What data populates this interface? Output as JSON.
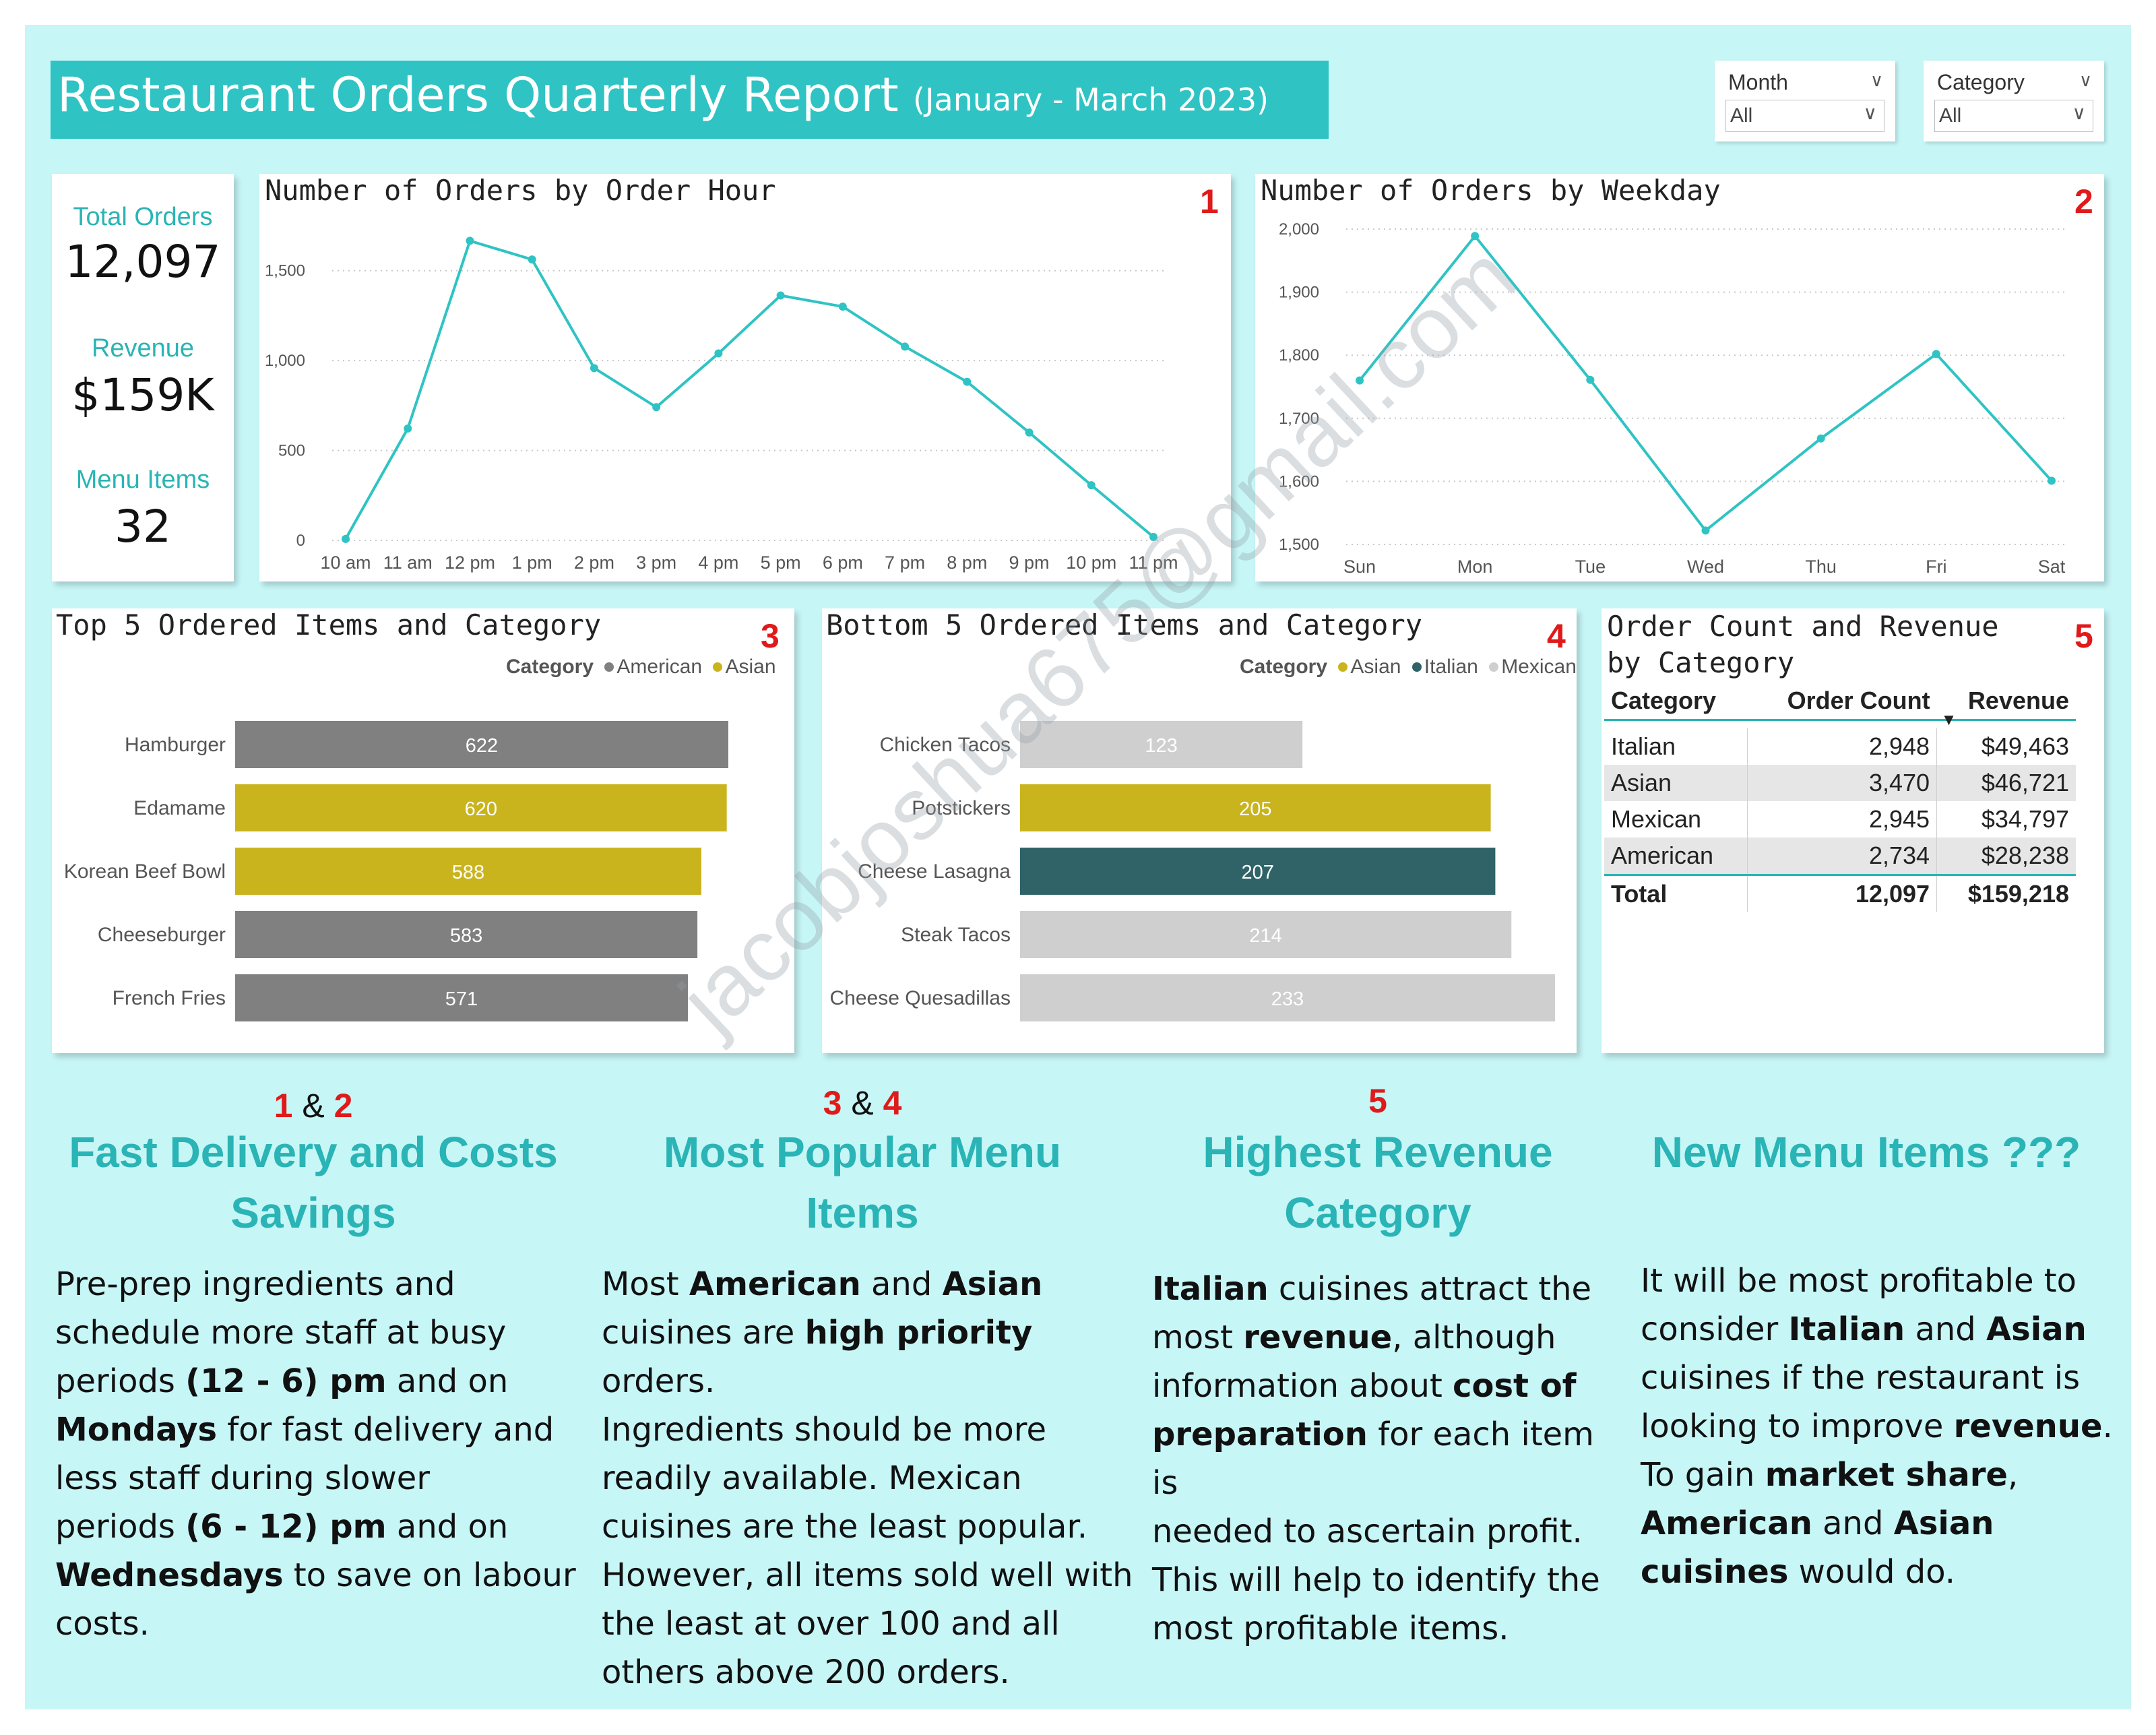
{
  "header": {
    "title": "Restaurant Orders Quarterly Report",
    "subtitle": "(January - March 2023)"
  },
  "slicers": [
    {
      "label": "Month",
      "value": "All"
    },
    {
      "label": "Category",
      "value": "All"
    }
  ],
  "kpis": [
    {
      "label": "Total Orders",
      "value": "12,097"
    },
    {
      "label": "Revenue",
      "value": "$159K"
    },
    {
      "label": "Menu Items",
      "value": "32"
    }
  ],
  "colors": {
    "background": "#c7f6f7",
    "accent": "#2fc3c4",
    "line": "#2fc3c4",
    "american": "#808080",
    "asian": "#c9b41e",
    "italian": "#2f6367",
    "mexican": "#cfcfcf",
    "badge": "#e01a1a"
  },
  "chart_data": [
    {
      "id": "orders-by-hour",
      "badge": "1",
      "type": "line",
      "title": "Number of Orders by Order Hour",
      "categories": [
        "10 am",
        "11 am",
        "12 pm",
        "1 pm",
        "2 pm",
        "3 pm",
        "4 pm",
        "5 pm",
        "6 pm",
        "7 pm",
        "8 pm",
        "9 pm",
        "10 pm",
        "11 pm"
      ],
      "values": [
        8,
        622,
        1666,
        1562,
        958,
        741,
        1040,
        1362,
        1300,
        1078,
        882,
        600,
        307,
        19
      ],
      "yticks": [
        "0",
        "500",
        "1,000",
        "1,500"
      ],
      "ylim": [
        0,
        1750
      ],
      "grid": true
    },
    {
      "id": "orders-by-weekday",
      "badge": "2",
      "type": "line",
      "title": "Number of Orders by Weekday",
      "categories": [
        "Sun",
        "Mon",
        "Tue",
        "Wed",
        "Thu",
        "Fri",
        "Sat"
      ],
      "values": [
        1760,
        1989,
        1761,
        1522,
        1668,
        1802,
        1601
      ],
      "yticks": [
        "1,500",
        "1,600",
        "1,700",
        "1,800",
        "1,900",
        "2,000"
      ],
      "ylim": [
        1500,
        2000
      ],
      "grid": true
    },
    {
      "id": "top5-items",
      "badge": "3",
      "type": "bar",
      "title": "Top 5 Ordered Items and Category",
      "legend_title": "Category",
      "legend": [
        {
          "name": "American",
          "color": "#808080"
        },
        {
          "name": "Asian",
          "color": "#c9b41e"
        }
      ],
      "categories": [
        "Hamburger",
        "Edamame",
        "Korean Beef Bowl",
        "Cheeseburger",
        "French Fries"
      ],
      "values": [
        622,
        620,
        588,
        583,
        571
      ],
      "labels": [
        "622",
        "620",
        "588",
        "583",
        "571"
      ],
      "category_of": [
        "American",
        "Asian",
        "Asian",
        "American",
        "American"
      ],
      "xlim": [
        0,
        622
      ]
    },
    {
      "id": "bottom5-items",
      "badge": "4",
      "type": "bar",
      "title": "Bottom 5 Ordered Items and Category",
      "legend_title": "Category",
      "legend": [
        {
          "name": "Asian",
          "color": "#c9b41e"
        },
        {
          "name": "Italian",
          "color": "#2f6367"
        },
        {
          "name": "Mexican",
          "color": "#cfcfcf"
        }
      ],
      "categories": [
        "Chicken Tacos",
        "Potstickers",
        "Cheese Lasagna",
        "Steak Tacos",
        "Cheese Quesadillas"
      ],
      "values": [
        123,
        205,
        207,
        214,
        233
      ],
      "labels": [
        "123",
        "205",
        "207",
        "214",
        "233"
      ],
      "category_of": [
        "Mexican",
        "Asian",
        "Italian",
        "Mexican",
        "Mexican"
      ],
      "xlim": [
        0,
        233
      ]
    },
    {
      "id": "category-table",
      "badge": "5",
      "type": "table",
      "title": "Order Count and Revenue by Category",
      "columns": [
        "Category",
        "Order Count",
        "Revenue"
      ],
      "rows": [
        [
          "Italian",
          "2,948",
          "$49,463"
        ],
        [
          "Asian",
          "3,470",
          "$46,721"
        ],
        [
          "Mexican",
          "2,945",
          "$34,797"
        ],
        [
          "American",
          "2,734",
          "$28,238"
        ]
      ],
      "total": [
        "Total",
        "12,097",
        "$159,218"
      ]
    }
  ],
  "insights": [
    {
      "num_a": "1",
      "amp": "&",
      "num_b": "2",
      "heading_line1": "Fast Delivery and Costs",
      "heading_line2": "Savings",
      "body": [
        "Pre-prep ingredients and",
        "schedule more staff at busy",
        "periods ",
        "(12 - 6) pm",
        " and on",
        "Mondays",
        " for fast delivery and",
        "less staff during slower",
        "periods ",
        "(6 - 12) pm",
        " and on",
        "Wednesdays",
        " to save on labour",
        "costs."
      ]
    },
    {
      "num_a": "3",
      "amp": "&",
      "num_b": "4",
      "heading_line1": "Most Popular Menu",
      "heading_line2": "Items",
      "body": [
        "Most ",
        "American",
        " and ",
        "Asian",
        "cuisines are ",
        "high priority",
        " orders.",
        "Ingredients should be more",
        "readily available. Mexican",
        "cuisines are the least popular.",
        "However, all items sold well with",
        "the least  at over 100 and all",
        "others above 200 orders."
      ]
    },
    {
      "num_a": "5",
      "heading_line1": "Highest Revenue",
      "heading_line2": "Category",
      "body": [
        "Italian",
        " cuisines attract the",
        "most ",
        "revenue",
        ", although",
        "information  about ",
        "cost of",
        "preparation",
        " for each item is",
        "needed to ascertain profit.",
        "This will help to identify the",
        "most profitable items."
      ]
    },
    {
      "heading_line1": "New Menu Items ???",
      "body": [
        "It will be most profitable to",
        "consider ",
        "Italian",
        " and ",
        "Asian",
        "cuisines if the restaurant is",
        "looking to improve ",
        "revenue",
        ".",
        "To gain ",
        "market share",
        ",",
        "American",
        " and ",
        "Asian",
        "cuisines",
        " would do."
      ]
    }
  ],
  "watermark": "jacobjoshua675@gmail.com"
}
